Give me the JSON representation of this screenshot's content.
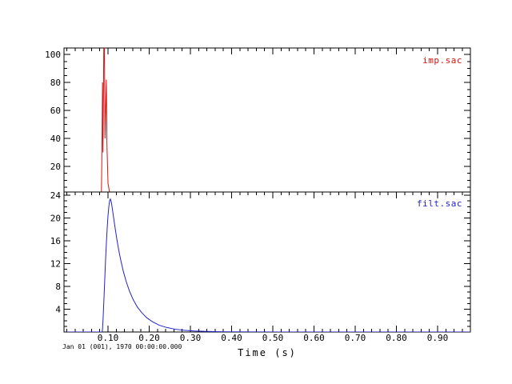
{
  "annotations": {
    "reference_time": "Jan 01 (001), 1970 00:00:00.000"
  },
  "xaxis": {
    "label": "Time (s)",
    "range": [
      -0.0068,
      0.9796
    ],
    "ticks": [
      0.1,
      0.2,
      0.3,
      0.4,
      0.5,
      0.6,
      0.7,
      0.8,
      0.9
    ],
    "tick_labels": [
      "0.10",
      "0.20",
      "0.30",
      "0.40",
      "0.50",
      "0.60",
      "0.70",
      "0.80",
      "0.90"
    ],
    "minor_step": 0.02
  },
  "chart_data": [
    {
      "type": "line",
      "series_label": "imp.sac",
      "color": "#dd1111",
      "frame_color": "#000000",
      "xlim": [
        -0.0068,
        0.9796
      ],
      "ylim": [
        1.7,
        104.6
      ],
      "yticks": [
        20,
        40,
        60,
        80,
        100
      ],
      "ytick_labels": [
        "20",
        "40",
        "60",
        "80",
        "100"
      ],
      "ytick_minor_step": 5,
      "description": "impulse near t=0.09 s, clipped at frame top (~104), side lobes ~80",
      "points": [
        [
          0.0,
          0
        ],
        [
          0.084,
          0
        ],
        [
          0.0855,
          38
        ],
        [
          0.0867,
          80
        ],
        [
          0.0878,
          30
        ],
        [
          0.0898,
          104.6
        ],
        [
          0.0913,
          104.6
        ],
        [
          0.0928,
          40
        ],
        [
          0.096,
          82
        ],
        [
          0.0975,
          35
        ],
        [
          0.1,
          8
        ],
        [
          0.104,
          1
        ],
        [
          0.1058,
          0
        ],
        [
          0.98,
          0
        ]
      ]
    },
    {
      "type": "line",
      "series_label": "filt.sac",
      "color": "#2222cc",
      "frame_color": "#000000",
      "xlim": [
        -0.0068,
        0.9796
      ],
      "ylim": [
        0,
        24.58
      ],
      "yticks": [
        4,
        8,
        12,
        16,
        20,
        24
      ],
      "ytick_labels": [
        "4",
        "8",
        "12",
        "16",
        "20",
        "24"
      ],
      "ytick_minor_step": 1,
      "description": "filtered impulse: sharp rise at t=0.086 s, peak 23.3 at t=0.106 s, exponential decay to 0 by t=0.3 s",
      "points": [
        [
          0.0,
          0
        ],
        [
          0.0855,
          0
        ],
        [
          0.0865,
          0.3
        ],
        [
          0.088,
          2.2
        ],
        [
          0.09,
          5.5
        ],
        [
          0.092,
          9.0
        ],
        [
          0.094,
          12.5
        ],
        [
          0.096,
          15.5
        ],
        [
          0.098,
          18.2
        ],
        [
          0.1,
          20.4
        ],
        [
          0.102,
          22.0
        ],
        [
          0.104,
          23.1
        ],
        [
          0.1057,
          23.35
        ],
        [
          0.108,
          22.8
        ],
        [
          0.11,
          21.9
        ],
        [
          0.113,
          20.4
        ],
        [
          0.117,
          18.4
        ],
        [
          0.121,
          16.5
        ],
        [
          0.126,
          14.4
        ],
        [
          0.131,
          12.6
        ],
        [
          0.137,
          10.7
        ],
        [
          0.144,
          8.9
        ],
        [
          0.152,
          7.2
        ],
        [
          0.161,
          5.7
        ],
        [
          0.171,
          4.4
        ],
        [
          0.182,
          3.4
        ],
        [
          0.194,
          2.5
        ],
        [
          0.208,
          1.8
        ],
        [
          0.224,
          1.2
        ],
        [
          0.242,
          0.8
        ],
        [
          0.262,
          0.5
        ],
        [
          0.285,
          0.3
        ],
        [
          0.31,
          0.18
        ],
        [
          0.34,
          0.1
        ],
        [
          0.38,
          0.04
        ],
        [
          0.44,
          0.01
        ],
        [
          0.52,
          0
        ],
        [
          0.98,
          0
        ]
      ]
    }
  ]
}
